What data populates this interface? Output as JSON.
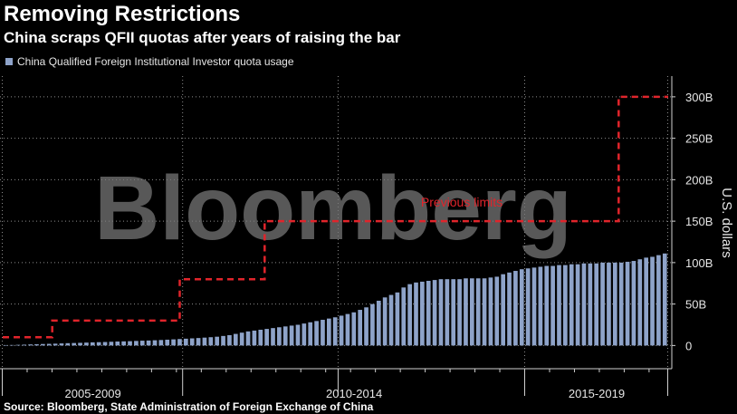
{
  "title": "Removing Restrictions",
  "subtitle": "China scraps QFII quotas after years of raising the bar",
  "legend": {
    "label": "China Qualified Foreign Institutional Investor quota usage"
  },
  "source": "Source: Bloomberg, State Administration of Foreign Exchange of China",
  "watermark": "Bloomberg",
  "colors": {
    "bar": "#8ea3c9",
    "limit_line": "#e0242b",
    "grid": "#8c8c8c",
    "background": "#000000"
  },
  "chart_data": {
    "type": "bar",
    "series": [
      {
        "name": "China Qualified Foreign Institutional Investor quota usage",
        "values": [
          0.5,
          0.6,
          0.8,
          1,
          1.3,
          1.5,
          1.8,
          2,
          2.2,
          2.5,
          2.8,
          3,
          3.2,
          3.5,
          3.8,
          4,
          4.2,
          4.5,
          4.8,
          5,
          5.2,
          5.5,
          5.8,
          6,
          6.3,
          6.6,
          7,
          7.4,
          7.8,
          8.2,
          8.6,
          9,
          9.5,
          10,
          10.6,
          11.5,
          12.5,
          14,
          15.5,
          17,
          18,
          19,
          20,
          21,
          22,
          23,
          24,
          25,
          26.5,
          28,
          29.5,
          31,
          32.5,
          34,
          36,
          38,
          40,
          43,
          46,
          50,
          54,
          58,
          61,
          64,
          70,
          74,
          76,
          77,
          78,
          79,
          80,
          80,
          80,
          80,
          81,
          81,
          81,
          81,
          82,
          83,
          86,
          88,
          90,
          92,
          93,
          94,
          95,
          96,
          96,
          97,
          97,
          98,
          98,
          99,
          99,
          99,
          100,
          100,
          100,
          100,
          101,
          102,
          104,
          106,
          107,
          109,
          111
        ]
      }
    ],
    "previous_limits": {
      "label": "Previous limits",
      "steps": [
        {
          "from": 0,
          "to": 7,
          "value": 10
        },
        {
          "from": 7,
          "to": 25,
          "value": 30
        },
        {
          "from": 25,
          "to": 37,
          "value": 80
        },
        {
          "from": 37,
          "to": 87,
          "value": 150
        },
        {
          "from": 87,
          "to": 94,
          "value": 300
        }
      ]
    },
    "period_labels": [
      "2005-2009",
      "2010-2014",
      "2015-2019"
    ],
    "yticks": [
      {
        "value": 0,
        "label": "0"
      },
      {
        "value": 50,
        "label": "50B"
      },
      {
        "value": 100,
        "label": "100B"
      },
      {
        "value": 150,
        "label": "150B"
      },
      {
        "value": 200,
        "label": "200B"
      },
      {
        "value": 250,
        "label": "250B"
      },
      {
        "value": 300,
        "label": "300B"
      }
    ],
    "ylabel": "U.S. dollars",
    "ylim": [
      -28,
      325
    ],
    "grid": true,
    "legend_position": "top-left"
  }
}
